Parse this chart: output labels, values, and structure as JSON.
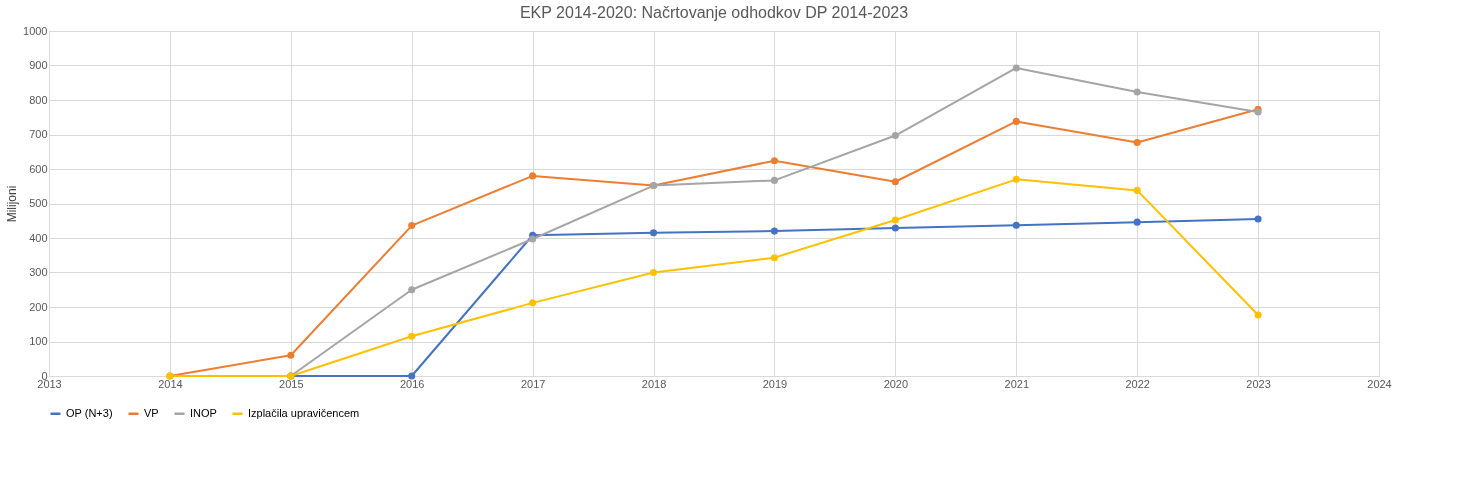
{
  "chart_data": {
    "type": "line",
    "title": "EKP 2014-2020: Načrtovanje odhodkov DP 2014-2023",
    "ylabel": "Milijoni",
    "x": [
      2014,
      2015,
      2016,
      2017,
      2018,
      2019,
      2020,
      2021,
      2022,
      2023
    ],
    "series": [
      {
        "name": "OP (N+3)",
        "color": "#4472c4",
        "values": [
          null,
          0,
          0,
          408,
          415,
          420,
          429,
          437,
          446,
          455
        ]
      },
      {
        "name": "VP",
        "color": "#ed7d31",
        "values": [
          0,
          60,
          436,
          580,
          552,
          624,
          563,
          738,
          677,
          773
        ]
      },
      {
        "name": "INOP",
        "color": "#a5a5a5",
        "values": [
          null,
          0,
          250,
          397,
          552,
          567,
          697,
          893,
          823,
          765
        ]
      },
      {
        "name": "Izplačila upravičencem",
        "color": "#ffc000",
        "values": [
          0,
          0,
          115,
          212,
          300,
          343,
          452,
          570,
          538,
          177
        ]
      }
    ],
    "xlim": [
      2013,
      2024
    ],
    "xticks": [
      2013,
      2014,
      2015,
      2016,
      2017,
      2018,
      2019,
      2020,
      2021,
      2022,
      2023,
      2024
    ],
    "ylim": [
      0,
      1000
    ],
    "yticks": [
      0,
      100,
      200,
      300,
      400,
      500,
      600,
      700,
      800,
      900,
      1000
    ],
    "grid": true,
    "legend": "bottom",
    "marker": "circle",
    "line_style": "solid"
  }
}
